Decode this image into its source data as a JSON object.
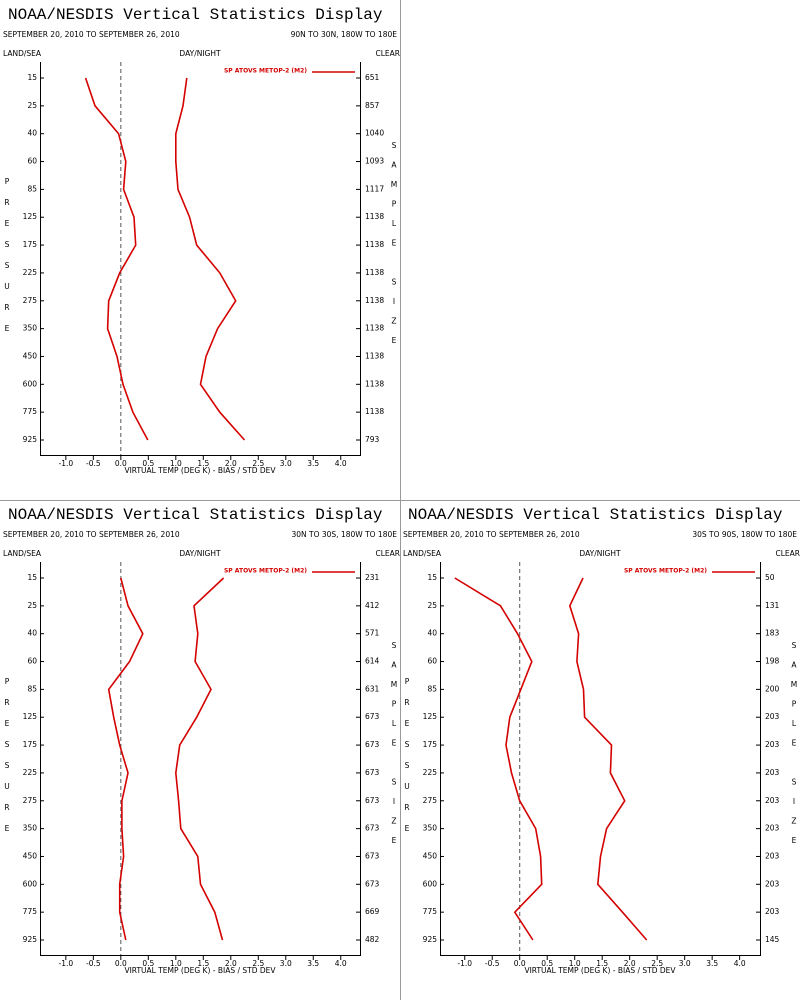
{
  "chart_data": [
    {
      "type": "line",
      "title": "NOAA/NESDIS Vertical Statistics Display",
      "subtitle": "SEPTEMBER 20, 2010 TO SEPTEMBER 26, 2010",
      "region": "90N TO 30N, 180W TO 180E",
      "left_header": "LAND/SEA",
      "center_header": "DAY/NIGHT",
      "right_header": "CLEAR",
      "ylabel": "PRESSURE",
      "y2label": "SAMPLE SIZE",
      "xlabel": "VIRTUAL TEMP (DEG K) - BIAS / STD DEV",
      "categories": [
        15,
        25,
        40,
        60,
        85,
        125,
        175,
        225,
        275,
        350,
        450,
        600,
        775,
        925
      ],
      "sample_size": [
        651,
        857,
        1040,
        1093,
        1117,
        1138,
        1138,
        1138,
        1138,
        1138,
        1138,
        1138,
        1138,
        793
      ],
      "series": [
        {
          "name": "SP ATOVS METOP-2 (M2)",
          "color": "#d40000",
          "values": [
            -0.64,
            -0.47,
            -0.04,
            0.09,
            0.05,
            0.24,
            0.27,
            -0.02,
            -0.22,
            -0.24,
            -0.07,
            0.04,
            0.22,
            0.49
          ]
        },
        {
          "color": "#d40000",
          "values": [
            1.2,
            1.13,
            1.0,
            1.0,
            1.04,
            1.25,
            1.38,
            1.8,
            2.09,
            1.76,
            1.55,
            1.45,
            1.8,
            2.25
          ]
        }
      ],
      "xlim": [
        -1.47,
        4.35
      ],
      "xticks": [
        {
          "value": -1,
          "label": "-1.0"
        },
        {
          "value": -0.5,
          "label": "-0.5"
        },
        {
          "value": 0,
          "label": "0.0"
        },
        {
          "value": 0.5,
          "label": "0.5"
        },
        {
          "value": 1,
          "label": "1.0"
        },
        {
          "value": 1.5,
          "label": "1.5"
        },
        {
          "value": 2,
          "label": "2.0"
        },
        {
          "value": 2.5,
          "label": "2.5"
        },
        {
          "value": 3,
          "label": "3.0"
        },
        {
          "value": 3.5,
          "label": "3.5"
        },
        {
          "value": 4,
          "label": "4.0"
        }
      ]
    },
    {
      "type": "line",
      "title": "NOAA/NESDIS Vertical Statistics Display",
      "subtitle": "SEPTEMBER 20, 2010 TO SEPTEMBER 26, 2010",
      "region": "30N TO 30S, 180W TO 180E",
      "left_header": "LAND/SEA",
      "center_header": "DAY/NIGHT",
      "right_header": "CLEAR",
      "ylabel": "PRESSURE",
      "y2label": "SAMPLE SIZE",
      "xlabel": "VIRTUAL TEMP (DEG K) - BIAS / STD DEV",
      "categories": [
        15,
        25,
        40,
        60,
        85,
        125,
        175,
        225,
        275,
        350,
        450,
        600,
        775,
        925
      ],
      "sample_size": [
        231,
        412,
        571,
        614,
        631,
        673,
        673,
        673,
        673,
        673,
        673,
        673,
        669,
        482
      ],
      "series": [
        {
          "name": "SP ATOVS METOP-2 (M2)",
          "color": "#d40000",
          "values": [
            0.0,
            0.13,
            0.4,
            0.16,
            -0.22,
            -0.13,
            -0.02,
            0.13,
            0.02,
            0.02,
            0.05,
            -0.02,
            -0.02,
            0.09
          ]
        },
        {
          "color": "#d40000",
          "values": [
            1.87,
            1.33,
            1.4,
            1.35,
            1.64,
            1.38,
            1.07,
            1.0,
            1.05,
            1.09,
            1.4,
            1.45,
            1.71,
            1.85
          ]
        }
      ],
      "xlim": [
        -1.47,
        4.35
      ],
      "xticks": [
        {
          "value": -1,
          "label": "-1.0"
        },
        {
          "value": -0.5,
          "label": "-0.5"
        },
        {
          "value": 0,
          "label": "0.0"
        },
        {
          "value": 0.5,
          "label": "0.5"
        },
        {
          "value": 1,
          "label": "1.0"
        },
        {
          "value": 1.5,
          "label": "1.5"
        },
        {
          "value": 2,
          "label": "2.0"
        },
        {
          "value": 2.5,
          "label": "2.5"
        },
        {
          "value": 3,
          "label": "3.0"
        },
        {
          "value": 3.5,
          "label": "3.5"
        },
        {
          "value": 4,
          "label": "4.0"
        }
      ]
    },
    {
      "type": "line",
      "title": "NOAA/NESDIS Vertical Statistics Display",
      "subtitle": "SEPTEMBER 20, 2010 TO SEPTEMBER 26, 2010",
      "region": "30S TO 90S, 180W TO 180E",
      "left_header": "LAND/SEA",
      "center_header": "DAY/NIGHT",
      "right_header": "CLEAR",
      "ylabel": "PRESSURE",
      "y2label": "SAMPLE SIZE",
      "xlabel": "VIRTUAL TEMP (DEG K) - BIAS / STD DEV",
      "categories": [
        15,
        25,
        40,
        60,
        85,
        125,
        175,
        225,
        275,
        350,
        450,
        600,
        775,
        925
      ],
      "sample_size": [
        50,
        131,
        183,
        198,
        200,
        203,
        203,
        203,
        203,
        203,
        203,
        203,
        203,
        145
      ],
      "series": [
        {
          "name": "SP ATOVS METOP-2 (M2)",
          "color": "#d40000",
          "values": [
            -1.18,
            -0.35,
            -0.04,
            0.22,
            0.02,
            -0.18,
            -0.25,
            -0.15,
            0.0,
            0.29,
            0.38,
            0.4,
            -0.09,
            0.24
          ]
        },
        {
          "color": "#d40000",
          "values": [
            1.15,
            0.91,
            1.07,
            1.04,
            1.16,
            1.18,
            1.67,
            1.65,
            1.91,
            1.58,
            1.47,
            1.42,
            1.87,
            2.31
          ]
        }
      ],
      "xlim": [
        -1.45,
        4.37
      ],
      "xticks": [
        {
          "value": -1,
          "label": "-1.0"
        },
        {
          "value": -0.5,
          "label": "-0.5"
        },
        {
          "value": 0,
          "label": "0.0"
        },
        {
          "value": 0.5,
          "label": "0.5"
        },
        {
          "value": 1,
          "label": "1.0"
        },
        {
          "value": 1.5,
          "label": "1.5"
        },
        {
          "value": 2,
          "label": "2.0"
        },
        {
          "value": 2.5,
          "label": "2.5"
        },
        {
          "value": 3,
          "label": "3.0"
        },
        {
          "value": 3.5,
          "label": "3.5"
        },
        {
          "value": 4,
          "label": "4.0"
        }
      ]
    }
  ]
}
